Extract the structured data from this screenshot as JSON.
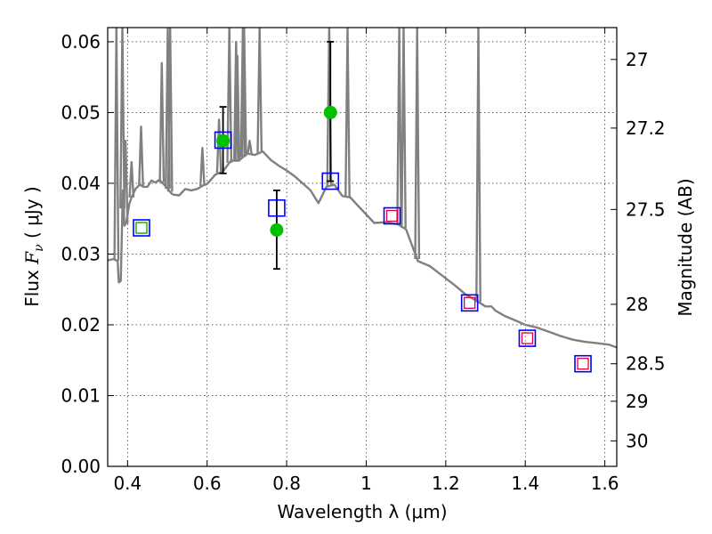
{
  "chart_data": {
    "type": "scatter",
    "xlabel": "Wavelength  λ (μm)",
    "ylabel": "Flux  F_ν  ( μJy )",
    "ylabel_parts": {
      "prefix": "Flux  ",
      "symbol": "F",
      "subscript": "ν",
      "suffix": "  ( μJy )"
    },
    "y2label": "Magnitude (AB)",
    "xlim": [
      0.35,
      1.63
    ],
    "ylim": [
      0.0,
      0.062
    ],
    "grid": true,
    "x_ticks": [
      {
        "value": 0.4,
        "label": "0.4"
      },
      {
        "value": 0.6,
        "label": "0.6"
      },
      {
        "value": 0.8,
        "label": "0.8"
      },
      {
        "value": 1.0,
        "label": "1"
      },
      {
        "value": 1.2,
        "label": "1.2"
      },
      {
        "value": 1.4,
        "label": "1.4"
      },
      {
        "value": 1.6,
        "label": "1.6"
      }
    ],
    "y_ticks": [
      {
        "value": 0.0,
        "label": "0.00"
      },
      {
        "value": 0.01,
        "label": "0.01"
      },
      {
        "value": 0.02,
        "label": "0.02"
      },
      {
        "value": 0.03,
        "label": "0.03"
      },
      {
        "value": 0.04,
        "label": "0.04"
      },
      {
        "value": 0.05,
        "label": "0.05"
      },
      {
        "value": 0.06,
        "label": "0.06"
      }
    ],
    "y2_ticks": [
      {
        "flux": 0.0575,
        "label": "27"
      },
      {
        "flux": 0.0478,
        "label": "27.2"
      },
      {
        "flux": 0.0363,
        "label": "27.5"
      },
      {
        "flux": 0.0229,
        "label": "28"
      },
      {
        "flux": 0.0145,
        "label": "28.5"
      },
      {
        "flux": 0.0092,
        "label": "29"
      },
      {
        "flux": 0.0036,
        "label": "30"
      }
    ],
    "series": [
      {
        "kind": "line",
        "color": "#808080",
        "points": [
          [
            0.35,
            0.0291
          ],
          [
            0.365,
            0.0293
          ],
          [
            0.375,
            0.029
          ],
          [
            0.378,
            0.026
          ],
          [
            0.383,
            0.0262
          ],
          [
            0.388,
            0.039
          ],
          [
            0.392,
            0.034
          ],
          [
            0.397,
            0.0345
          ],
          [
            0.404,
            0.037
          ],
          [
            0.41,
            0.038
          ],
          [
            0.42,
            0.0392
          ],
          [
            0.43,
            0.0398
          ],
          [
            0.44,
            0.0395
          ],
          [
            0.45,
            0.0395
          ],
          [
            0.46,
            0.0404
          ],
          [
            0.47,
            0.0401
          ],
          [
            0.48,
            0.0405
          ],
          [
            0.49,
            0.0399
          ],
          [
            0.5,
            0.0393
          ],
          [
            0.51,
            0.0386
          ],
          [
            0.515,
            0.0384
          ],
          [
            0.53,
            0.0383
          ],
          [
            0.545,
            0.0392
          ],
          [
            0.56,
            0.039
          ],
          [
            0.575,
            0.0392
          ],
          [
            0.59,
            0.0397
          ],
          [
            0.6,
            0.0399
          ],
          [
            0.62,
            0.0412
          ],
          [
            0.64,
            0.0417
          ],
          [
            0.66,
            0.0432
          ],
          [
            0.68,
            0.0432
          ],
          [
            0.7,
            0.0442
          ],
          [
            0.72,
            0.044
          ],
          [
            0.74,
            0.0445
          ],
          [
            0.76,
            0.0433
          ],
          [
            0.78,
            0.0425
          ],
          [
            0.8,
            0.0418
          ],
          [
            0.82,
            0.041
          ],
          [
            0.84,
            0.04
          ],
          [
            0.86,
            0.039
          ],
          [
            0.88,
            0.0372
          ],
          [
            0.9,
            0.0395
          ],
          [
            0.92,
            0.0398
          ],
          [
            0.94,
            0.0382
          ],
          [
            0.96,
            0.038
          ],
          [
            0.98,
            0.0368
          ],
          [
            1.0,
            0.0356
          ],
          [
            1.02,
            0.0344
          ],
          [
            1.05,
            0.0345
          ],
          [
            1.08,
            0.0342
          ],
          [
            1.1,
            0.0335
          ],
          [
            1.13,
            0.029
          ],
          [
            1.16,
            0.0283
          ],
          [
            1.19,
            0.027
          ],
          [
            1.22,
            0.0257
          ],
          [
            1.25,
            0.0243
          ],
          [
            1.28,
            0.0233
          ],
          [
            1.3,
            0.0226
          ],
          [
            1.315,
            0.0226
          ],
          [
            1.325,
            0.022
          ],
          [
            1.35,
            0.0212
          ],
          [
            1.38,
            0.0205
          ],
          [
            1.4,
            0.02
          ],
          [
            1.43,
            0.0196
          ],
          [
            1.46,
            0.019
          ],
          [
            1.49,
            0.0184
          ],
          [
            1.52,
            0.0179
          ],
          [
            1.55,
            0.0176
          ],
          [
            1.58,
            0.0174
          ],
          [
            1.61,
            0.0172
          ],
          [
            1.63,
            0.0168
          ]
        ]
      },
      {
        "kind": "emission_lines",
        "color": "#808080",
        "lines": [
          {
            "x": 0.372,
            "peak": 0.062
          },
          {
            "x": 0.387,
            "peak": 0.062
          },
          {
            "x": 0.395,
            "peak": 0.046
          },
          {
            "x": 0.41,
            "peak": 0.043
          },
          {
            "x": 0.434,
            "peak": 0.048
          },
          {
            "x": 0.486,
            "peak": 0.057
          },
          {
            "x": 0.501,
            "peak": 0.062
          },
          {
            "x": 0.507,
            "peak": 0.062
          },
          {
            "x": 0.588,
            "peak": 0.045
          },
          {
            "x": 0.63,
            "peak": 0.049
          },
          {
            "x": 0.656,
            "peak": 0.062
          },
          {
            "x": 0.673,
            "peak": 0.06
          },
          {
            "x": 0.676,
            "peak": 0.058
          },
          {
            "x": 0.69,
            "peak": 0.062
          },
          {
            "x": 0.693,
            "peak": 0.062
          },
          {
            "x": 0.707,
            "peak": 0.046
          },
          {
            "x": 0.732,
            "peak": 0.062
          },
          {
            "x": 0.907,
            "peak": 0.062
          },
          {
            "x": 0.953,
            "peak": 0.062
          },
          {
            "x": 1.083,
            "peak": 0.062
          },
          {
            "x": 1.094,
            "peak": 0.062
          },
          {
            "x": 1.128,
            "peak": 0.062
          },
          {
            "x": 1.282,
            "peak": 0.062
          }
        ]
      },
      {
        "kind": "markers",
        "name": "measured",
        "marker": "circle",
        "color": "#00c000",
        "points": [
          {
            "x": 0.64,
            "y": 0.046,
            "yerr_low": 0.0414,
            "yerr_high": 0.0508
          },
          {
            "x": 0.775,
            "y": 0.0334,
            "yerr_low": 0.0279,
            "yerr_high": 0.039
          },
          {
            "x": 0.91,
            "y": 0.05,
            "yerr_low": 0.0403,
            "yerr_high": 0.06
          }
        ]
      },
      {
        "kind": "markers",
        "name": "model_blue_squares",
        "marker": "square",
        "color": "#0000ff",
        "points": [
          {
            "x": 0.435,
            "y": 0.0337
          },
          {
            "x": 0.64,
            "y": 0.0461
          },
          {
            "x": 0.775,
            "y": 0.0365
          },
          {
            "x": 0.91,
            "y": 0.0403
          },
          {
            "x": 1.065,
            "y": 0.0354
          },
          {
            "x": 1.26,
            "y": 0.0231
          },
          {
            "x": 1.405,
            "y": 0.0181
          },
          {
            "x": 1.545,
            "y": 0.0145
          }
        ]
      },
      {
        "kind": "markers",
        "name": "inner_squares",
        "marker": "square-small",
        "points": [
          {
            "x": 0.435,
            "y": 0.0337,
            "color": "#00a000"
          },
          {
            "x": 1.065,
            "y": 0.0354,
            "color": "#e0003c"
          },
          {
            "x": 1.26,
            "y": 0.0231,
            "color": "#e0003c"
          },
          {
            "x": 1.405,
            "y": 0.0181,
            "color": "#e0003c"
          },
          {
            "x": 1.545,
            "y": 0.0145,
            "color": "#e0003c"
          }
        ]
      }
    ]
  }
}
